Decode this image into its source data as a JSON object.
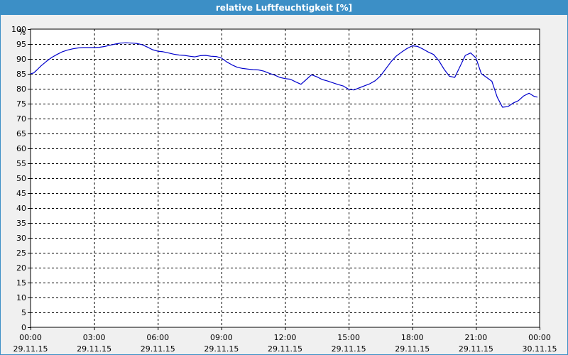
{
  "window": {
    "title": "relative Luftfeuchtigkeit [%]",
    "title_bg": "#3c8fc6"
  },
  "chart_data": {
    "type": "line",
    "title": "relative Luftfeuchtigkeit [%]",
    "ylabel": "%",
    "xlabel": "",
    "ylim": [
      0,
      100
    ],
    "xlim": [
      0,
      24
    ],
    "grid": true,
    "y_ticks": [
      0,
      5,
      10,
      15,
      20,
      25,
      30,
      35,
      40,
      45,
      50,
      55,
      60,
      65,
      70,
      75,
      80,
      85,
      90,
      95,
      100
    ],
    "x_ticks": [
      {
        "x": 0,
        "time": "00:00",
        "date": "29.11.15"
      },
      {
        "x": 3,
        "time": "03:00",
        "date": "29.11.15"
      },
      {
        "x": 6,
        "time": "06:00",
        "date": "29.11.15"
      },
      {
        "x": 9,
        "time": "09:00",
        "date": "29.11.15"
      },
      {
        "x": 12,
        "time": "12:00",
        "date": "29.11.15"
      },
      {
        "x": 15,
        "time": "15:00",
        "date": "29.11.15"
      },
      {
        "x": 18,
        "time": "18:00",
        "date": "29.11.15"
      },
      {
        "x": 21,
        "time": "21:00",
        "date": "29.11.15"
      },
      {
        "x": 24,
        "time": "00:00",
        "date": "30.11.15"
      }
    ],
    "series": [
      {
        "color": "#0000cc",
        "x": [
          0,
          0.15,
          0.3,
          0.5,
          0.75,
          1.0,
          1.25,
          1.5,
          1.75,
          2.0,
          2.25,
          2.5,
          2.75,
          3.0,
          3.25,
          3.5,
          3.75,
          4.0,
          4.25,
          4.5,
          4.75,
          5.0,
          5.25,
          5.5,
          5.75,
          6.0,
          6.25,
          6.5,
          6.75,
          7.0,
          7.25,
          7.5,
          7.75,
          8.0,
          8.25,
          8.5,
          8.75,
          9.0,
          9.25,
          9.5,
          9.75,
          10.0,
          10.25,
          10.5,
          10.75,
          11.0,
          11.25,
          11.5,
          11.75,
          12.0,
          12.25,
          12.5,
          12.75,
          13.0,
          13.25,
          13.5,
          13.75,
          14.0,
          14.25,
          14.5,
          14.75,
          15.0,
          15.25,
          15.5,
          15.75,
          16.0,
          16.25,
          16.5,
          16.75,
          17.0,
          17.25,
          17.5,
          17.75,
          18.0,
          18.25,
          18.5,
          18.75,
          19.0,
          19.25,
          19.5,
          19.75,
          20.0,
          20.25,
          20.5,
          20.75,
          21.0,
          21.25,
          21.5,
          21.75,
          22.0,
          22.25,
          22.5,
          22.75,
          23.0,
          23.25,
          23.5,
          23.75,
          23.9
        ],
        "y": [
          85,
          85.3,
          86.3,
          87.7,
          89.2,
          90.5,
          91.5,
          92.4,
          93.0,
          93.4,
          93.7,
          93.8,
          93.8,
          93.8,
          93.9,
          94.2,
          94.6,
          95.0,
          95.3,
          95.4,
          95.3,
          95.2,
          94.8,
          94.0,
          93.1,
          92.6,
          92.4,
          92.0,
          91.6,
          91.3,
          91.2,
          90.9,
          90.7,
          91.1,
          91.2,
          90.9,
          90.8,
          90.3,
          89.0,
          88.0,
          87.2,
          86.8,
          86.6,
          86.4,
          86.3,
          85.9,
          85.2,
          84.6,
          83.8,
          83.4,
          83.2,
          82.3,
          81.5,
          83.1,
          84.7,
          84.0,
          83.1,
          82.6,
          82.0,
          81.4,
          80.9,
          79.8,
          79.6,
          80.3,
          81.0,
          81.7,
          82.7,
          84.3,
          86.7,
          89.1,
          91.0,
          92.3,
          93.5,
          94.4,
          94.2,
          93.3,
          92.3,
          91.5,
          89.4,
          86.5,
          84.2,
          83.8,
          87.5,
          91.2,
          92.0,
          90.3,
          85.1,
          83.8,
          82.5,
          77.2,
          73.8,
          74.0,
          75.2,
          76.0,
          77.6,
          78.5,
          77.4,
          77.2
        ]
      }
    ]
  }
}
